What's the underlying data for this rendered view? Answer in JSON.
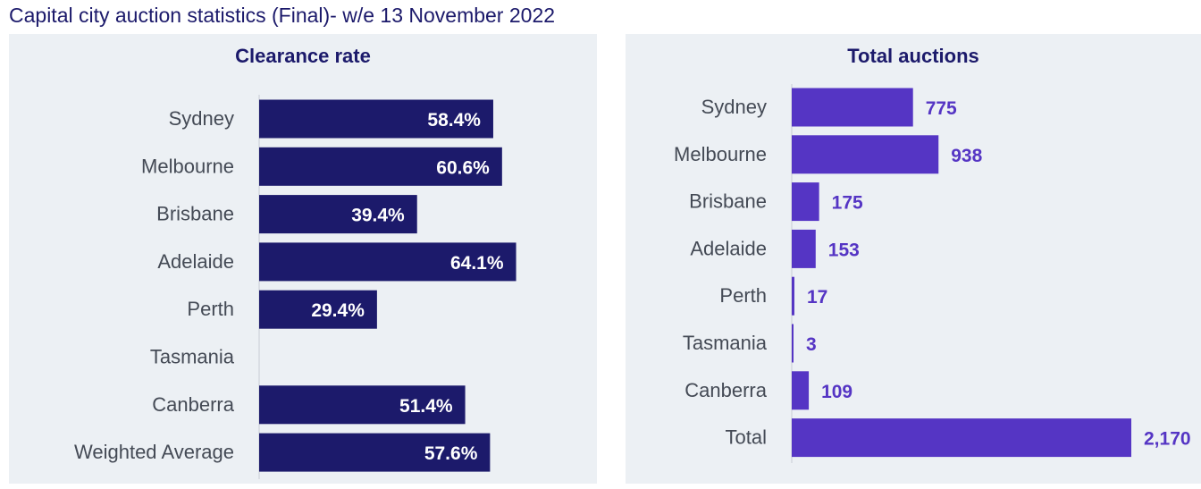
{
  "page_title": "Capital city auction statistics (Final)- w/e 13 November 2022",
  "chart_data": [
    {
      "type": "bar",
      "orientation": "horizontal",
      "title": "Clearance rate",
      "categories": [
        "Sydney",
        "Melbourne",
        "Brisbane",
        "Adelaide",
        "Perth",
        "Tasmania",
        "Canberra",
        "Weighted Average"
      ],
      "values": [
        58.4,
        60.6,
        39.4,
        64.1,
        29.4,
        null,
        51.4,
        57.6
      ],
      "labels": [
        "58.4%",
        "60.6%",
        "39.4%",
        "64.1%",
        "29.4%",
        "",
        "51.4%",
        "57.6%"
      ],
      "xlim": [
        0,
        70
      ],
      "color": "#1c1a6b"
    },
    {
      "type": "bar",
      "orientation": "horizontal",
      "title": "Total auctions",
      "categories": [
        "Sydney",
        "Melbourne",
        "Brisbane",
        "Adelaide",
        "Perth",
        "Tasmania",
        "Canberra",
        "Total"
      ],
      "values": [
        775,
        938,
        175,
        153,
        17,
        3,
        109,
        2170
      ],
      "labels": [
        "775",
        "938",
        "175",
        "153",
        "17",
        "3",
        "109",
        "2,170"
      ],
      "xlim": [
        0,
        2170
      ],
      "color": "#5535c4"
    }
  ]
}
